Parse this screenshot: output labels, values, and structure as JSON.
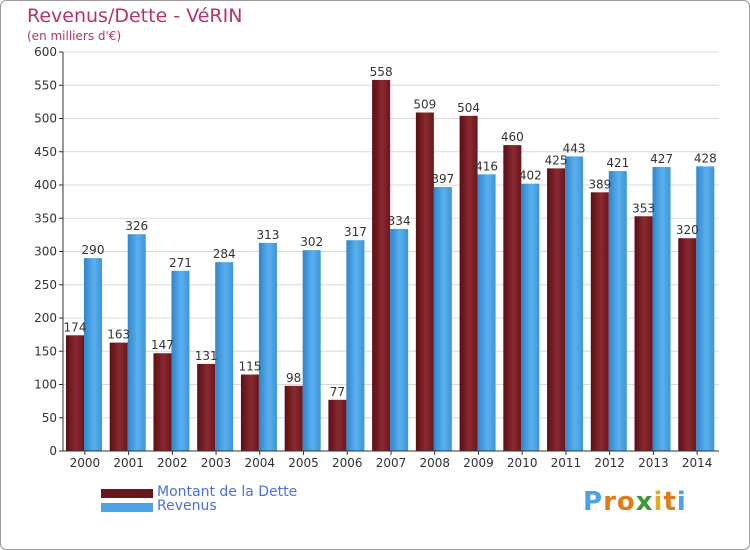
{
  "chart_data": {
    "type": "bar",
    "title": "Revenus/Dette - VéRIN",
    "subtitle": "(en milliers d'€)",
    "categories": [
      "2000",
      "2001",
      "2002",
      "2003",
      "2004",
      "2005",
      "2006",
      "2007",
      "2008",
      "2009",
      "2010",
      "2011",
      "2012",
      "2013",
      "2014"
    ],
    "series": [
      {
        "name": "Montant de la Dette",
        "color": "#7a1c24",
        "values": [
          174,
          163,
          147,
          131,
          115,
          98,
          77,
          558,
          509,
          504,
          460,
          425,
          389,
          353,
          320
        ]
      },
      {
        "name": "Revenus",
        "color": "#4aa3e6",
        "values": [
          290,
          326,
          271,
          284,
          313,
          302,
          317,
          334,
          397,
          416,
          402,
          443,
          421,
          427,
          428
        ]
      }
    ],
    "ylim": [
      0,
      600
    ],
    "yticks": [
      0,
      50,
      100,
      150,
      200,
      250,
      300,
      350,
      400,
      450,
      500,
      550,
      600
    ],
    "grid": true,
    "legend_position": "bottom-left"
  },
  "logo": {
    "text": "Proxiti",
    "letters": [
      {
        "ch": "P",
        "color": "#4aa3e6"
      },
      {
        "ch": "r",
        "color": "#e07a1c"
      },
      {
        "ch": "o",
        "color": "#e07a1c"
      },
      {
        "ch": "x",
        "color": "#3a9a3a"
      },
      {
        "ch": "i",
        "color": "#e0b01c"
      },
      {
        "ch": "t",
        "color": "#e07a1c"
      },
      {
        "ch": "i",
        "color": "#4aa3e6"
      }
    ]
  }
}
